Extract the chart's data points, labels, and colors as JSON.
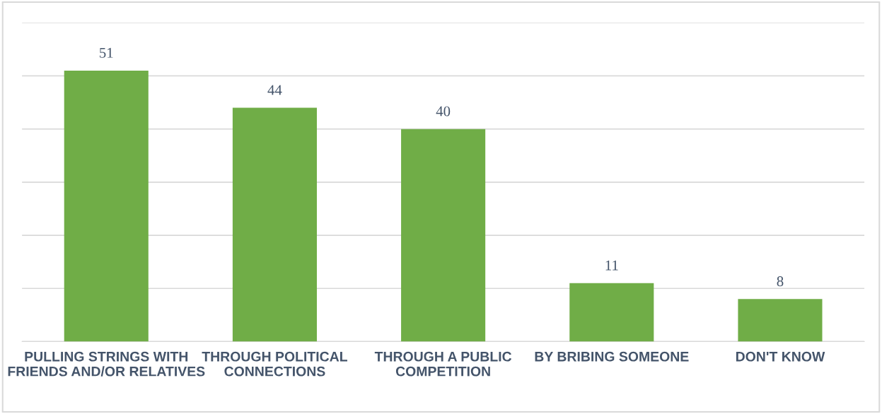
{
  "chart_data": {
    "type": "bar",
    "categories": [
      "PULLING STRINGS WITH\nFRIENDS AND/OR RELATIVES",
      "THROUGH POLITICAL\nCONNECTIONS",
      "THROUGH A PUBLIC\nCOMPETITION",
      "BY BRIBING SOMEONE",
      "DON'T KNOW"
    ],
    "values": [
      51,
      44,
      40,
      11,
      8
    ],
    "color": "#70ad47",
    "ylim": [
      0,
      60
    ],
    "yticks": [
      {
        "value": 0,
        "label": null
      },
      {
        "value": 10,
        "label": null
      },
      {
        "value": 20,
        "label": null
      },
      {
        "value": 30,
        "label": null
      },
      {
        "value": 40,
        "label": null
      },
      {
        "value": 50,
        "label": null
      },
      {
        "value": 60,
        "label": null
      }
    ],
    "grid": "y",
    "tick_labels": "x",
    "data_labels": true
  }
}
